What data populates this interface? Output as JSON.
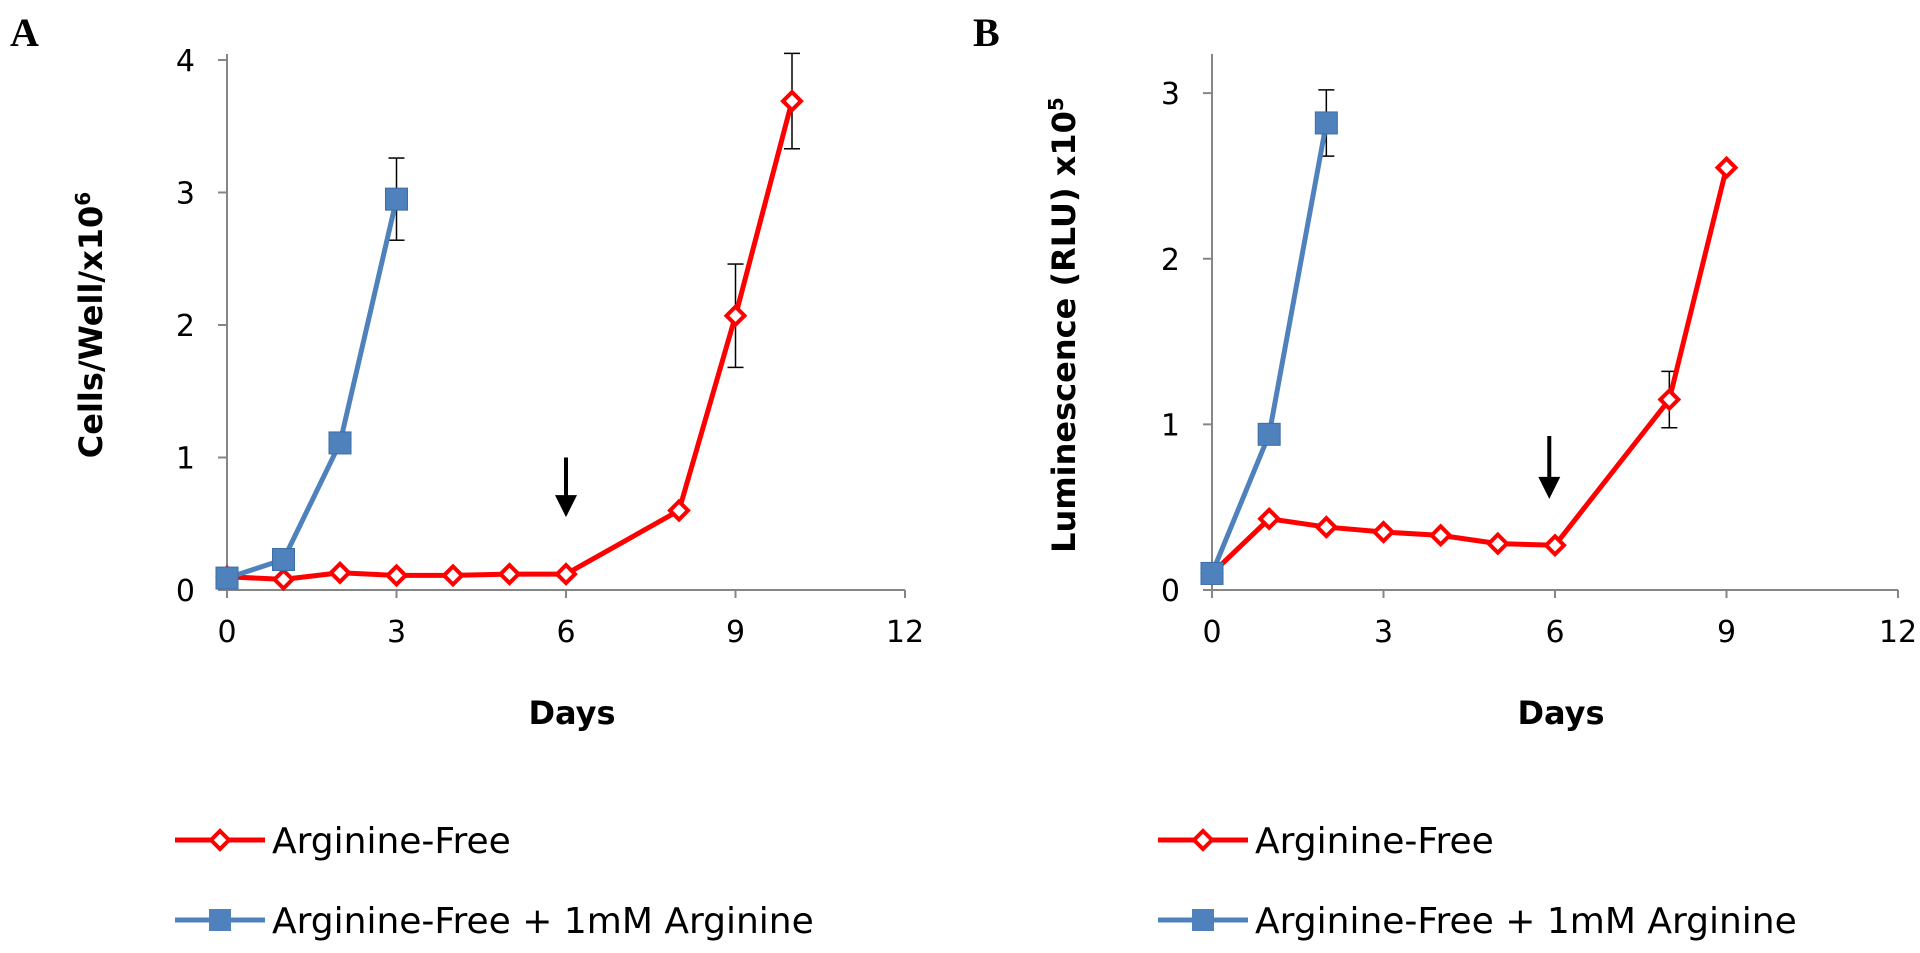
{
  "chart_data": [
    {
      "panel": "A",
      "type": "line",
      "xlabel": "Days",
      "ylabel": "Cells/Well/x10",
      "ylabel_sup": "6",
      "xlim": [
        0,
        12
      ],
      "ylim": [
        0,
        4
      ],
      "xticks": [
        "0",
        "3",
        "6",
        "9",
        "12"
      ],
      "yticks": [
        "0",
        "1",
        "2",
        "3",
        "4"
      ],
      "arrow_at": {
        "x": 6,
        "y_top": 1.0,
        "y_bottom": 0.55
      },
      "series": [
        {
          "name": "Arginine-Free",
          "color": "#ff0000",
          "marker": "diamond-open",
          "x": [
            0,
            1,
            2,
            3,
            4,
            5,
            6,
            8,
            9,
            10
          ],
          "y": [
            0.1,
            0.08,
            0.13,
            0.11,
            0.11,
            0.12,
            0.12,
            0.6,
            2.07,
            3.69
          ],
          "err": [
            0,
            0,
            0,
            0,
            0,
            0,
            0,
            0,
            0.39,
            0.36
          ]
        },
        {
          "name": "Arginine-Free + 1mM Arginine",
          "color": "#4f81bd",
          "marker": "square",
          "x": [
            0,
            1,
            2,
            3
          ],
          "y": [
            0.09,
            0.23,
            1.11,
            2.95
          ],
          "err": [
            0,
            0,
            0,
            0.31
          ]
        }
      ]
    },
    {
      "panel": "B",
      "type": "line",
      "xlabel": "Days",
      "ylabel": "Luminescence (RLU) x10",
      "ylabel_sup": "5",
      "xlim": [
        0,
        12
      ],
      "ylim": [
        0,
        3.2
      ],
      "xticks": [
        "0",
        "3",
        "6",
        "9",
        "12"
      ],
      "yticks": [
        "0",
        "1",
        "2",
        "3"
      ],
      "arrow_at": {
        "x": 5.9,
        "y_top": 0.93,
        "y_bottom": 0.55
      },
      "series": [
        {
          "name": "Arginine-Free",
          "color": "#ff0000",
          "marker": "diamond-open",
          "x": [
            0,
            1,
            2,
            3,
            4,
            5,
            6,
            8,
            9
          ],
          "y": [
            0.1,
            0.43,
            0.38,
            0.35,
            0.33,
            0.28,
            0.27,
            1.15,
            2.55
          ],
          "err": [
            0,
            0,
            0,
            0,
            0,
            0,
            0,
            0.17,
            0
          ]
        },
        {
          "name": "Arginine-Free + 1mM Arginine",
          "color": "#4f81bd",
          "marker": "square",
          "x": [
            0,
            1,
            2
          ],
          "y": [
            0.1,
            0.94,
            2.82
          ],
          "err": [
            0,
            0,
            0.2
          ]
        }
      ]
    }
  ]
}
